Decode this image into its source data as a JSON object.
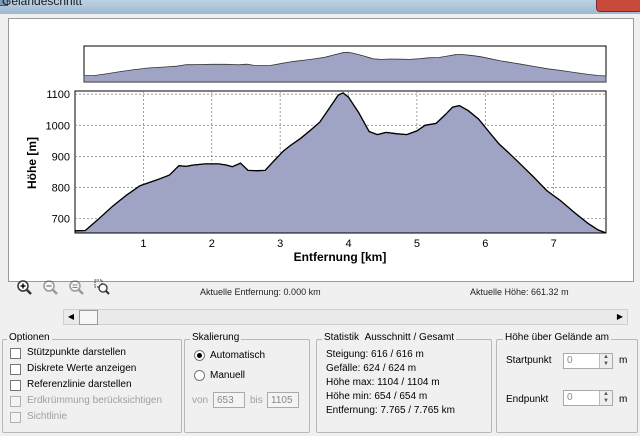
{
  "window": {
    "title": "Geländeschnitt"
  },
  "chart_data": {
    "type": "area",
    "xlabel": "Entfernung [km]",
    "ylabel": "Höhe [m]",
    "xlim": [
      0,
      7.765
    ],
    "ylim": [
      654,
      1110
    ],
    "x_ticks": [
      "1",
      "2",
      "3",
      "4",
      "5",
      "6",
      "7"
    ],
    "y_ticks": [
      "1100",
      "1000",
      "900",
      "800",
      "700"
    ],
    "grid": true,
    "fill_color": "#9fa3c4",
    "line_color": "#000000",
    "points": [
      [
        0,
        661
      ],
      [
        0.15,
        662
      ],
      [
        0.35,
        700
      ],
      [
        0.55,
        740
      ],
      [
        0.75,
        775
      ],
      [
        0.95,
        806
      ],
      [
        1.2,
        825
      ],
      [
        1.38,
        840
      ],
      [
        1.52,
        870
      ],
      [
        1.62,
        868
      ],
      [
        1.72,
        872
      ],
      [
        1.9,
        876
      ],
      [
        2.1,
        876
      ],
      [
        2.22,
        872
      ],
      [
        2.3,
        867
      ],
      [
        2.42,
        878
      ],
      [
        2.53,
        855
      ],
      [
        2.66,
        854
      ],
      [
        2.78,
        855
      ],
      [
        2.92,
        888
      ],
      [
        3.05,
        918
      ],
      [
        3.15,
        935
      ],
      [
        3.3,
        958
      ],
      [
        3.45,
        985
      ],
      [
        3.58,
        1010
      ],
      [
        3.72,
        1055
      ],
      [
        3.85,
        1097
      ],
      [
        3.92,
        1104
      ],
      [
        4.0,
        1090
      ],
      [
        4.15,
        1040
      ],
      [
        4.3,
        980
      ],
      [
        4.42,
        970
      ],
      [
        4.55,
        977
      ],
      [
        4.7,
        973
      ],
      [
        4.85,
        970
      ],
      [
        5.0,
        982
      ],
      [
        5.12,
        1000
      ],
      [
        5.28,
        1006
      ],
      [
        5.42,
        1035
      ],
      [
        5.52,
        1058
      ],
      [
        5.62,
        1063
      ],
      [
        5.75,
        1047
      ],
      [
        5.9,
        1020
      ],
      [
        6.05,
        980
      ],
      [
        6.2,
        940
      ],
      [
        6.35,
        910
      ],
      [
        6.5,
        878
      ],
      [
        6.7,
        835
      ],
      [
        6.9,
        790
      ],
      [
        7.1,
        758
      ],
      [
        7.3,
        720
      ],
      [
        7.5,
        685
      ],
      [
        7.65,
        664
      ],
      [
        7.765,
        654
      ]
    ]
  },
  "status": {
    "distance": "Aktuelle Entfernung: 0.000 km",
    "height": "Aktuelle Höhe: 661.32 m"
  },
  "icons": [
    "zoom-in-icon",
    "zoom-out-icon",
    "zoom-out-all-icon",
    "zoom-select-icon"
  ],
  "options": {
    "title": "Optionen",
    "items": [
      {
        "label": "Stützpunkte darstellen",
        "enabled": true
      },
      {
        "label": "Diskrete Werte anzeigen",
        "enabled": true
      },
      {
        "label": "Referenzlinie darstellen",
        "enabled": true
      },
      {
        "label": "Erdkrümmung berücksichtigen",
        "enabled": false
      },
      {
        "label": "Sichtlinie",
        "enabled": false
      }
    ]
  },
  "scaling": {
    "title": "Skalierung",
    "auto_label": "Automatisch",
    "manual_label": "Manuell",
    "from_label": "von",
    "from_value": "653",
    "to_label": "bis",
    "to_value": "1105"
  },
  "statistics": {
    "title": "Statistik",
    "subtitle": "Ausschnitt / Gesamt",
    "rows": [
      "Steigung: 616 / 616 m",
      "Gefälle: 624 / 624 m",
      "Höhe max: 1104 / 1104 m",
      "Höhe min: 654 / 654 m",
      "Entfernung: 7.765 / 7.765 km"
    ]
  },
  "height_above": {
    "title": "Höhe über Gelände am",
    "start_label": "Startpunkt",
    "start_value": "0",
    "end_label": "Endpunkt",
    "end_value": "0",
    "unit": "m"
  },
  "colors": {
    "accent_fill": "#9fa3c4",
    "window_bg": "#f0f0f0"
  }
}
